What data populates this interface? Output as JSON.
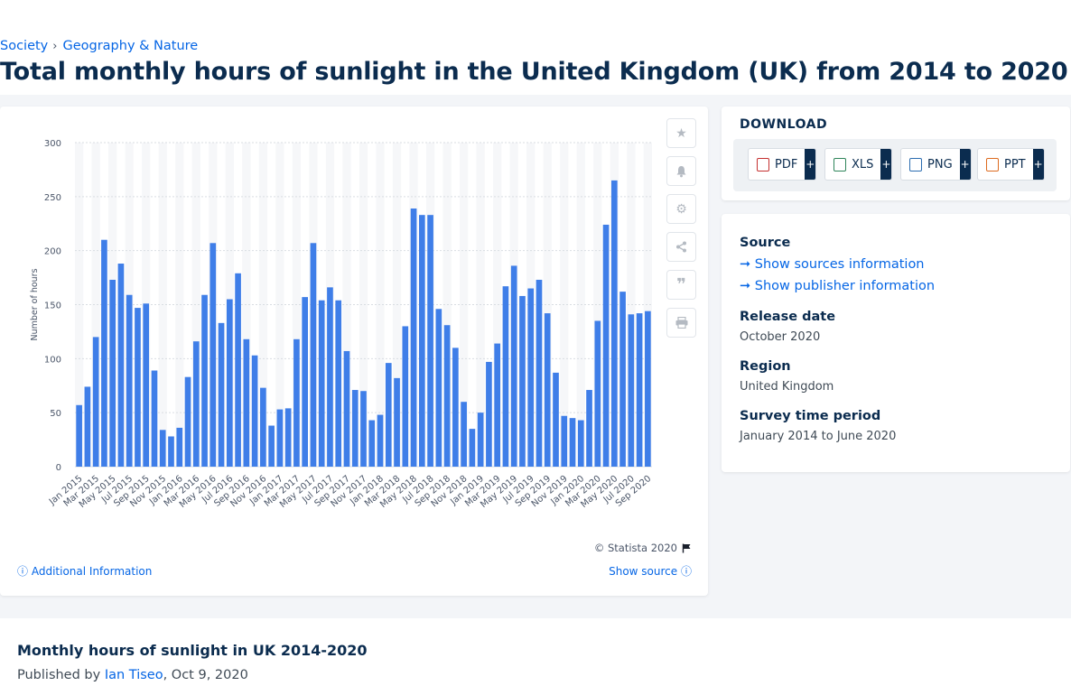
{
  "breadcrumb": [
    "Society",
    "Geography & Nature"
  ],
  "title": "Total monthly hours of sunlight in the United Kingdom (UK) from 2014 to 2020",
  "chart_data": {
    "type": "bar",
    "title": "",
    "xlabel": "",
    "ylabel": "Number of hours",
    "ylim": [
      0,
      300
    ],
    "yticks": [
      0,
      50,
      100,
      150,
      200,
      250,
      300
    ],
    "grid": true,
    "color": "#3f7ee8",
    "categories": [
      "Jan 2015",
      "Feb 2015",
      "Mar 2015",
      "Apr 2015",
      "May 2015",
      "Jun 2015",
      "Jul 2015",
      "Aug 2015",
      "Sep 2015",
      "Oct 2015",
      "Nov 2015",
      "Dec 2015",
      "Jan 2016",
      "Feb 2016",
      "Mar 2016",
      "Apr 2016",
      "May 2016",
      "Jun 2016",
      "Jul 2016",
      "Aug 2016",
      "Sep 2016",
      "Oct 2016",
      "Nov 2016",
      "Dec 2016",
      "Jan 2017",
      "Feb 2017",
      "Mar 2017",
      "Apr 2017",
      "May 2017",
      "Jun 2017",
      "Jul 2017",
      "Aug 2017",
      "Sep 2017",
      "Oct 2017",
      "Nov 2017",
      "Dec 2017",
      "Jan 2018",
      "Feb 2018",
      "Mar 2018",
      "Apr 2018",
      "May 2018",
      "Jun 2018",
      "Jul 2018",
      "Aug 2018",
      "Sep 2018",
      "Oct 2018",
      "Nov 2018",
      "Dec 2018",
      "Jan 2019",
      "Feb 2019",
      "Mar 2019",
      "Apr 2019",
      "May 2019",
      "Jun 2019",
      "Jul 2019",
      "Aug 2019",
      "Sep 2019",
      "Oct 2019",
      "Nov 2019",
      "Dec 2019",
      "Jan 2020",
      "Feb 2020",
      "Mar 2020",
      "Apr 2020",
      "May 2020",
      "Jun 2020",
      "Jul 2020",
      "Aug 2020",
      "Sep 2020"
    ],
    "values": [
      57,
      74,
      120,
      210,
      173,
      188,
      159,
      147,
      151,
      89,
      34,
      28,
      36,
      83,
      116,
      159,
      207,
      133,
      155,
      179,
      118,
      103,
      73,
      38,
      53,
      54,
      118,
      157,
      207,
      154,
      166,
      154,
      107,
      71,
      70,
      43,
      48,
      96,
      82,
      130,
      239,
      233,
      233,
      146,
      131,
      110,
      60,
      35,
      50,
      97,
      114,
      167,
      186,
      158,
      165,
      173,
      142,
      87,
      47,
      45,
      43,
      71,
      135,
      224,
      265,
      162,
      141,
      142,
      144
    ],
    "tick_labels": [
      "Jan 2015",
      "Mar 2015",
      "May 2015",
      "Jul 2015",
      "Sep 2015",
      "Nov 2015",
      "Jan 2016",
      "Mar 2016",
      "May 2016",
      "Jul 2016",
      "Sep 2016",
      "Nov 2016",
      "Jan 2017",
      "Mar 2017",
      "May 2017",
      "Jul 2017",
      "Sep 2017",
      "Nov 2017",
      "Jan 2018",
      "Mar 2018",
      "May 2018",
      "Jul 2018",
      "Sep 2018",
      "Nov 2018",
      "Jan 2019",
      "Mar 2019",
      "May 2019",
      "Jul 2019",
      "Sep 2019",
      "Nov 2019",
      "Jan 2020",
      "Mar 2020",
      "May 2020",
      "Jul 2020",
      "Sep 2020"
    ]
  },
  "chart_footer": {
    "copyright": "© Statista 2020",
    "additional_info": "Additional Information",
    "show_source": "Show source"
  },
  "tools": [
    "star-icon",
    "bell-icon",
    "gear-icon",
    "share-icon",
    "quote-icon",
    "print-icon"
  ],
  "download": {
    "title": "DOWNLOAD",
    "formats": [
      "PDF",
      "XLS",
      "PNG",
      "PPT"
    ]
  },
  "info": {
    "source_label": "Source",
    "show_sources": "Show sources information",
    "show_publisher": "Show publisher information",
    "release_label": "Release date",
    "release_value": "October 2020",
    "region_label": "Region",
    "region_value": "United Kingdom",
    "survey_label": "Survey time period",
    "survey_value": "January 2014 to June 2020"
  },
  "article": {
    "title": "Monthly hours of sunlight in UK 2014-2020",
    "published_prefix": "Published by ",
    "author": "Ian Tiseo",
    "date": ", Oct 9, 2020"
  }
}
